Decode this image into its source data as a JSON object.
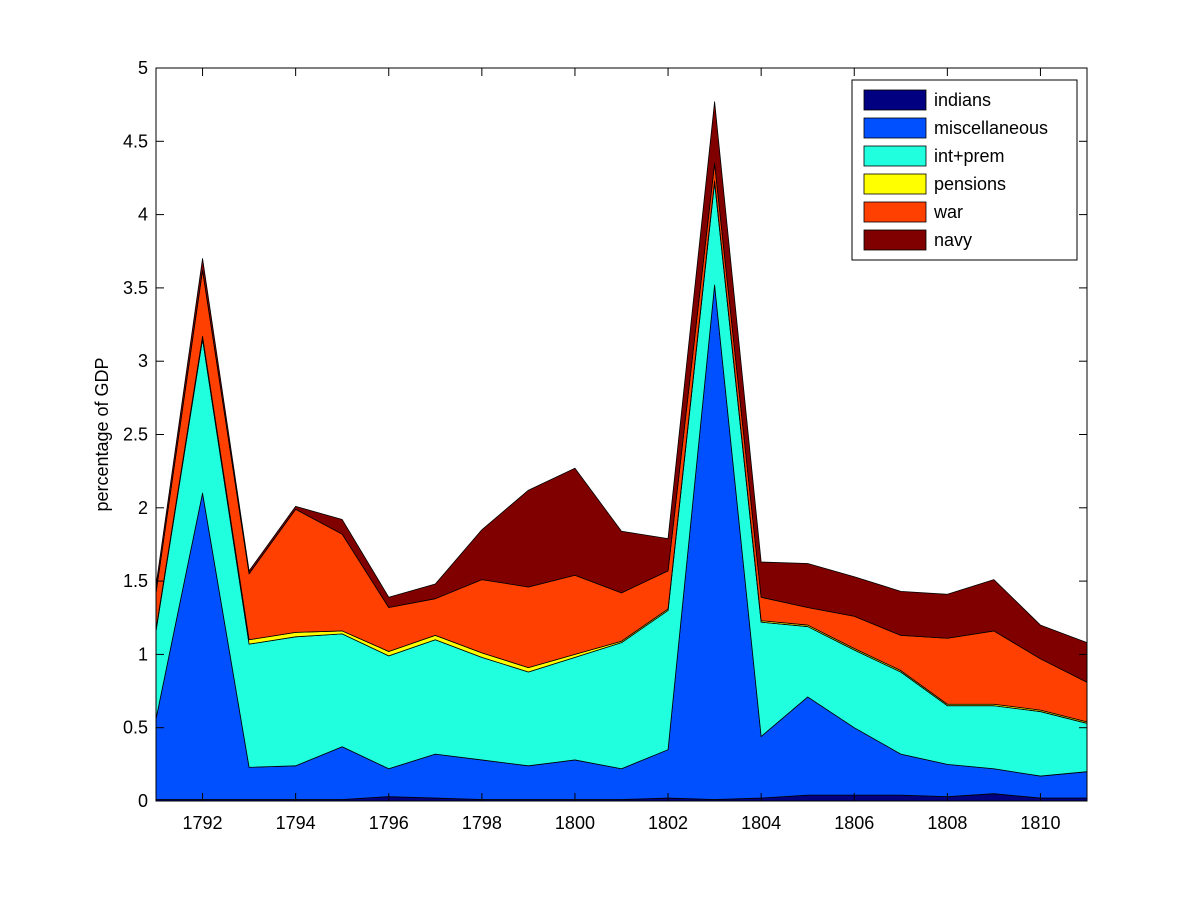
{
  "chart_data": {
    "type": "area",
    "stacked": true,
    "title": "",
    "xlabel": "",
    "ylabel": "percentage of GDP",
    "xlim": [
      1791,
      1811
    ],
    "ylim": [
      0,
      5
    ],
    "xticks": [
      1792,
      1794,
      1796,
      1798,
      1800,
      1802,
      1804,
      1806,
      1808,
      1810
    ],
    "yticks": [
      0,
      0.5,
      1,
      1.5,
      2,
      2.5,
      3,
      3.5,
      4,
      4.5,
      5
    ],
    "ytick_labels": [
      "0",
      "0.5",
      "1",
      "1.5",
      "2",
      "2.5",
      "3",
      "3.5",
      "4",
      "4.5",
      "5"
    ],
    "grid": false,
    "legend_position": "top-right",
    "x": [
      1791,
      1792,
      1793,
      1794,
      1795,
      1796,
      1797,
      1798,
      1799,
      1800,
      1801,
      1802,
      1803,
      1804,
      1805,
      1806,
      1807,
      1808,
      1809,
      1810,
      1811
    ],
    "series": [
      {
        "name": "indians",
        "color": "#000080",
        "values": [
          0.01,
          0.01,
          0.01,
          0.01,
          0.01,
          0.03,
          0.02,
          0.01,
          0.01,
          0.01,
          0.01,
          0.02,
          0.01,
          0.02,
          0.04,
          0.04,
          0.04,
          0.03,
          0.05,
          0.02,
          0.02
        ]
      },
      {
        "name": "miscellaneous",
        "color": "#0050ff",
        "values": [
          0.55,
          2.09,
          0.22,
          0.23,
          0.36,
          0.19,
          0.3,
          0.27,
          0.23,
          0.27,
          0.21,
          0.33,
          3.51,
          0.42,
          0.67,
          0.46,
          0.28,
          0.22,
          0.17,
          0.15,
          0.18
        ]
      },
      {
        "name": "int+prem",
        "color": "#20ffde",
        "values": [
          0.6,
          1.05,
          0.84,
          0.88,
          0.77,
          0.77,
          0.78,
          0.7,
          0.64,
          0.7,
          0.86,
          0.95,
          0.7,
          0.78,
          0.48,
          0.53,
          0.56,
          0.4,
          0.43,
          0.44,
          0.33
        ]
      },
      {
        "name": "pensions",
        "color": "#ffff00",
        "values": [
          0.01,
          0.02,
          0.03,
          0.03,
          0.02,
          0.03,
          0.03,
          0.03,
          0.03,
          0.02,
          0.01,
          0.01,
          0.01,
          0.01,
          0.01,
          0.01,
          0.01,
          0.01,
          0.01,
          0.01,
          0.01
        ]
      },
      {
        "name": "war",
        "color": "#ff4000",
        "values": [
          0.25,
          0.45,
          0.45,
          0.84,
          0.66,
          0.3,
          0.25,
          0.5,
          0.55,
          0.54,
          0.33,
          0.26,
          0.12,
          0.16,
          0.12,
          0.22,
          0.24,
          0.45,
          0.5,
          0.35,
          0.27
        ]
      },
      {
        "name": "navy",
        "color": "#800000",
        "values": [
          0.05,
          0.08,
          0.02,
          0.02,
          0.1,
          0.07,
          0.1,
          0.34,
          0.66,
          0.73,
          0.42,
          0.22,
          0.42,
          0.24,
          0.3,
          0.27,
          0.3,
          0.3,
          0.35,
          0.23,
          0.27
        ]
      }
    ]
  }
}
